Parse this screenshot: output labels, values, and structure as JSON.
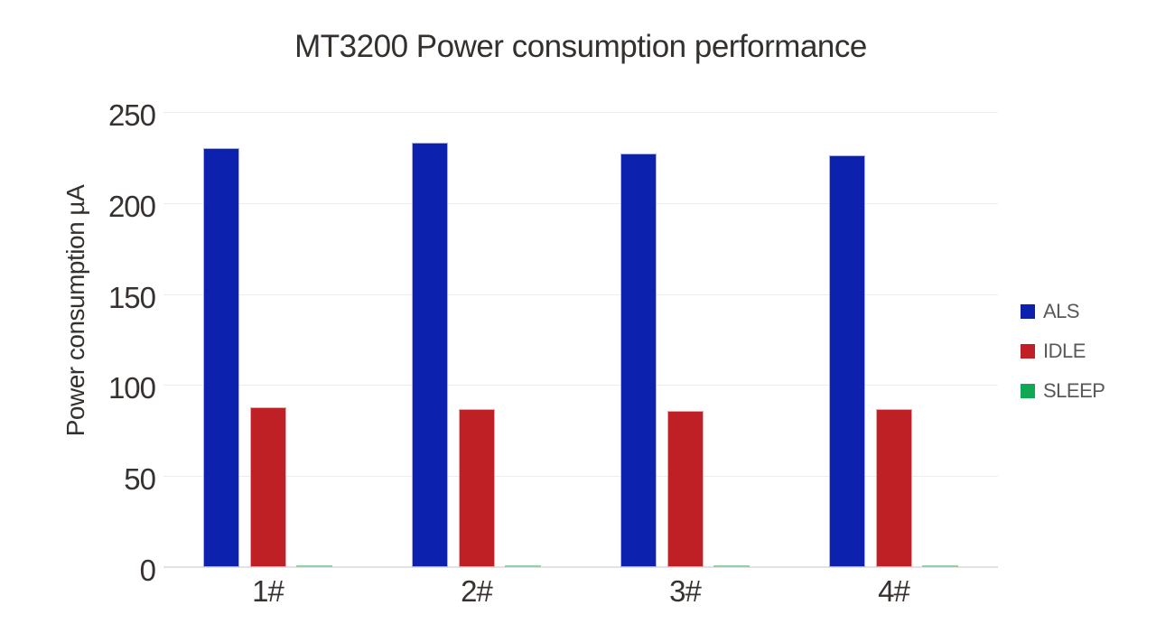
{
  "title": "MT3200 Power consumption performance",
  "colors": {
    "background": "#ffffff",
    "grid": "#ededed",
    "axis_baseline": "#e2e2e2",
    "axis_text": "#37312f",
    "title_text": "#33302e",
    "legend_text": "#595959"
  },
  "chart_data": {
    "type": "bar",
    "title": "MT3200 Power consumption performance",
    "xlabel": "",
    "ylabel": "Power consumption µA",
    "categories": [
      "1#",
      "2#",
      "3#",
      "4#"
    ],
    "series": [
      {
        "name": "ALS",
        "color": "#0c21ae",
        "edge_color": "#a9b2e3",
        "values": [
          230,
          233,
          227,
          226
        ]
      },
      {
        "name": "IDLE",
        "color": "#bf2026",
        "edge_color": "#e3a9ac",
        "values": [
          88,
          87,
          86,
          87
        ]
      },
      {
        "name": "SLEEP",
        "color": "#12a755",
        "bar_color": "#8fd2a6",
        "values": [
          1,
          1,
          1,
          1
        ]
      }
    ],
    "ylim": [
      0,
      250
    ],
    "yticks": [
      0,
      50,
      100,
      150,
      200,
      250
    ],
    "grid": true,
    "legend_position": "right"
  }
}
